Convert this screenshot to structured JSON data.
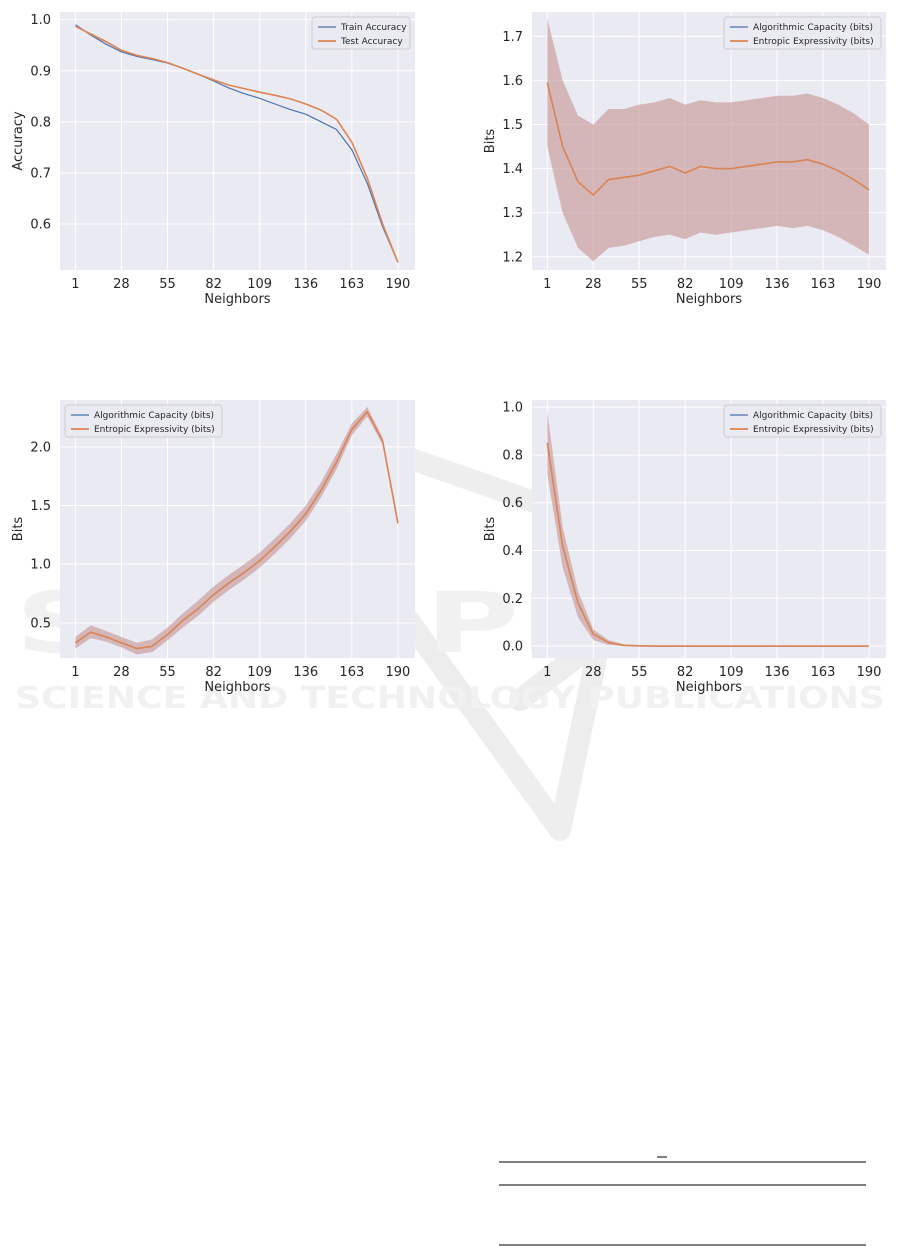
{
  "watermark": {
    "big": "SCITEPRESS",
    "small": "SCIENCE AND TECHNOLOGY PUBLICATIONS"
  },
  "colors": {
    "blue": "#4c72b0",
    "orange": "#dd8452",
    "band": "#c79a9a",
    "background": "#eaeaf2"
  },
  "chart_data": [
    {
      "type": "line",
      "title": "",
      "xlabel": "Neighbors",
      "ylabel": "Accuracy",
      "xticks": [
        1,
        28,
        55,
        82,
        109,
        136,
        163,
        190
      ],
      "yticks": [
        0.6,
        0.7,
        0.8,
        0.9,
        1.0
      ],
      "yticklabels": [
        "0.6",
        "0.7",
        "0.8",
        "0.9",
        "1.0"
      ],
      "xlim": [
        -8,
        200
      ],
      "ylim": [
        0.51,
        1.015
      ],
      "legend": "top-right",
      "grid": true,
      "x": [
        1,
        10,
        19,
        28,
        37,
        46,
        55,
        64,
        73,
        82,
        91,
        100,
        109,
        118,
        127,
        136,
        145,
        154,
        163,
        172,
        181,
        190
      ],
      "series": [
        {
          "name": "Train Accuracy",
          "color": "#4c72b0",
          "values": [
            0.99,
            0.97,
            0.952,
            0.937,
            0.928,
            0.922,
            0.915,
            0.905,
            0.893,
            0.88,
            0.866,
            0.855,
            0.846,
            0.835,
            0.824,
            0.815,
            0.8,
            0.785,
            0.745,
            0.68,
            0.595,
            0.525
          ]
        },
        {
          "name": "Test Accuracy",
          "color": "#dd8452",
          "values": [
            0.987,
            0.972,
            0.957,
            0.94,
            0.93,
            0.924,
            0.916,
            0.905,
            0.893,
            0.882,
            0.872,
            0.865,
            0.858,
            0.852,
            0.845,
            0.835,
            0.823,
            0.805,
            0.76,
            0.69,
            0.6,
            0.525
          ]
        }
      ]
    },
    {
      "type": "line",
      "title": "",
      "xlabel": "Neighbors",
      "ylabel": "Bits",
      "xticks": [
        1,
        28,
        55,
        82,
        109,
        136,
        163,
        190
      ],
      "yticks": [
        1.2,
        1.3,
        1.4,
        1.5,
        1.6,
        1.7
      ],
      "yticklabels": [
        "1.2",
        "1.3",
        "1.4",
        "1.5",
        "1.6",
        "1.7"
      ],
      "xlim": [
        -8,
        200
      ],
      "ylim": [
        1.17,
        1.755
      ],
      "legend": "top-right",
      "grid": true,
      "x": [
        1,
        10,
        19,
        28,
        37,
        46,
        55,
        64,
        73,
        82,
        91,
        100,
        109,
        118,
        127,
        136,
        145,
        154,
        163,
        172,
        181,
        190
      ],
      "series": [
        {
          "name": "Algorithmic Capacity (bits)",
          "color": "#4c72b0",
          "values": [
            1.595,
            1.45,
            1.37,
            1.34,
            1.375,
            1.38,
            1.385,
            1.395,
            1.405,
            1.39,
            1.405,
            1.4,
            1.4,
            1.405,
            1.41,
            1.415,
            1.415,
            1.42,
            1.41,
            1.395,
            1.375,
            1.352
          ],
          "band_low": [
            1.45,
            1.3,
            1.22,
            1.19,
            1.22,
            1.225,
            1.235,
            1.245,
            1.25,
            1.24,
            1.255,
            1.25,
            1.255,
            1.26,
            1.265,
            1.27,
            1.265,
            1.27,
            1.26,
            1.245,
            1.225,
            1.205
          ],
          "band_high": [
            1.74,
            1.6,
            1.52,
            1.5,
            1.535,
            1.535,
            1.545,
            1.55,
            1.56,
            1.545,
            1.555,
            1.55,
            1.55,
            1.555,
            1.56,
            1.565,
            1.565,
            1.57,
            1.56,
            1.545,
            1.525,
            1.5
          ]
        },
        {
          "name": "Entropic Expressivity (bits)",
          "color": "#dd8452",
          "values": [
            1.595,
            1.45,
            1.37,
            1.34,
            1.375,
            1.38,
            1.385,
            1.395,
            1.405,
            1.39,
            1.405,
            1.4,
            1.4,
            1.405,
            1.41,
            1.415,
            1.415,
            1.42,
            1.41,
            1.395,
            1.375,
            1.352
          ]
        }
      ]
    },
    {
      "type": "line",
      "title": "",
      "xlabel": "Neighbors",
      "ylabel": "Bits",
      "xticks": [
        1,
        28,
        55,
        82,
        109,
        136,
        163,
        190
      ],
      "yticks": [
        0.5,
        1.0,
        1.5,
        2.0
      ],
      "yticklabels": [
        "0.5",
        "1.0",
        "1.5",
        "2.0"
      ],
      "xlim": [
        -8,
        200
      ],
      "ylim": [
        0.2,
        2.4
      ],
      "legend": "top-left",
      "grid": true,
      "x": [
        1,
        10,
        19,
        28,
        37,
        46,
        55,
        64,
        73,
        82,
        91,
        100,
        109,
        118,
        127,
        136,
        145,
        154,
        163,
        172,
        181,
        190
      ],
      "series": [
        {
          "name": "Algorithmic Capacity (bits)",
          "color": "#4c72b0",
          "values": [
            0.33,
            0.42,
            0.38,
            0.33,
            0.28,
            0.3,
            0.4,
            0.52,
            0.62,
            0.74,
            0.84,
            0.93,
            1.03,
            1.15,
            1.28,
            1.43,
            1.63,
            1.87,
            2.15,
            2.3,
            2.05,
            1.35
          ],
          "band_low": [
            0.28,
            0.37,
            0.34,
            0.29,
            0.23,
            0.25,
            0.35,
            0.46,
            0.56,
            0.68,
            0.78,
            0.87,
            0.97,
            1.09,
            1.22,
            1.37,
            1.57,
            1.81,
            2.1,
            2.26,
            2.02,
            1.33
          ],
          "band_high": [
            0.38,
            0.48,
            0.43,
            0.38,
            0.33,
            0.36,
            0.46,
            0.58,
            0.69,
            0.81,
            0.91,
            1.0,
            1.1,
            1.22,
            1.35,
            1.5,
            1.7,
            1.94,
            2.2,
            2.34,
            2.08,
            1.38
          ]
        },
        {
          "name": "Entropic Expressivity (bits)",
          "color": "#dd8452",
          "values": [
            0.33,
            0.42,
            0.38,
            0.33,
            0.28,
            0.3,
            0.4,
            0.52,
            0.62,
            0.74,
            0.84,
            0.93,
            1.03,
            1.15,
            1.28,
            1.43,
            1.63,
            1.87,
            2.15,
            2.3,
            2.05,
            1.35
          ]
        }
      ]
    },
    {
      "type": "line",
      "title": "",
      "xlabel": "Neighbors",
      "ylabel": "Bits",
      "xticks": [
        1,
        28,
        55,
        82,
        109,
        136,
        163,
        190
      ],
      "yticks": [
        0.0,
        0.2,
        0.4,
        0.6,
        0.8,
        1.0
      ],
      "yticklabels": [
        "0.0",
        "0.2",
        "0.4",
        "0.6",
        "0.8",
        "1.0"
      ],
      "xlim": [
        -8,
        200
      ],
      "ylim": [
        -0.05,
        1.03
      ],
      "legend": "top-right",
      "grid": true,
      "x": [
        1,
        10,
        19,
        28,
        37,
        46,
        55,
        64,
        73,
        82,
        91,
        100,
        109,
        118,
        127,
        136,
        145,
        154,
        163,
        172,
        181,
        190
      ],
      "series": [
        {
          "name": "Algorithmic Capacity (bits)",
          "color": "#4c72b0",
          "values": [
            0.85,
            0.42,
            0.18,
            0.05,
            0.015,
            0.003,
            0.001,
            0,
            0,
            0,
            0,
            0,
            0,
            0,
            0,
            0,
            0,
            0,
            0,
            0,
            0,
            0
          ],
          "band_low": [
            0.72,
            0.33,
            0.12,
            0.025,
            0.005,
            0,
            0,
            0,
            0,
            0,
            0,
            0,
            0,
            0,
            0,
            0,
            0,
            0,
            0,
            0,
            0,
            0
          ],
          "band_high": [
            0.98,
            0.5,
            0.23,
            0.07,
            0.025,
            0.007,
            0.002,
            0,
            0,
            0,
            0,
            0,
            0,
            0,
            0,
            0,
            0,
            0,
            0,
            0,
            0,
            0
          ]
        },
        {
          "name": "Entropic Expressivity (bits)",
          "color": "#dd8452",
          "values": [
            0.85,
            0.42,
            0.18,
            0.05,
            0.015,
            0.003,
            0.001,
            0,
            0,
            0,
            0,
            0,
            0,
            0,
            0,
            0,
            0,
            0,
            0,
            0,
            0,
            0
          ]
        }
      ]
    }
  ]
}
